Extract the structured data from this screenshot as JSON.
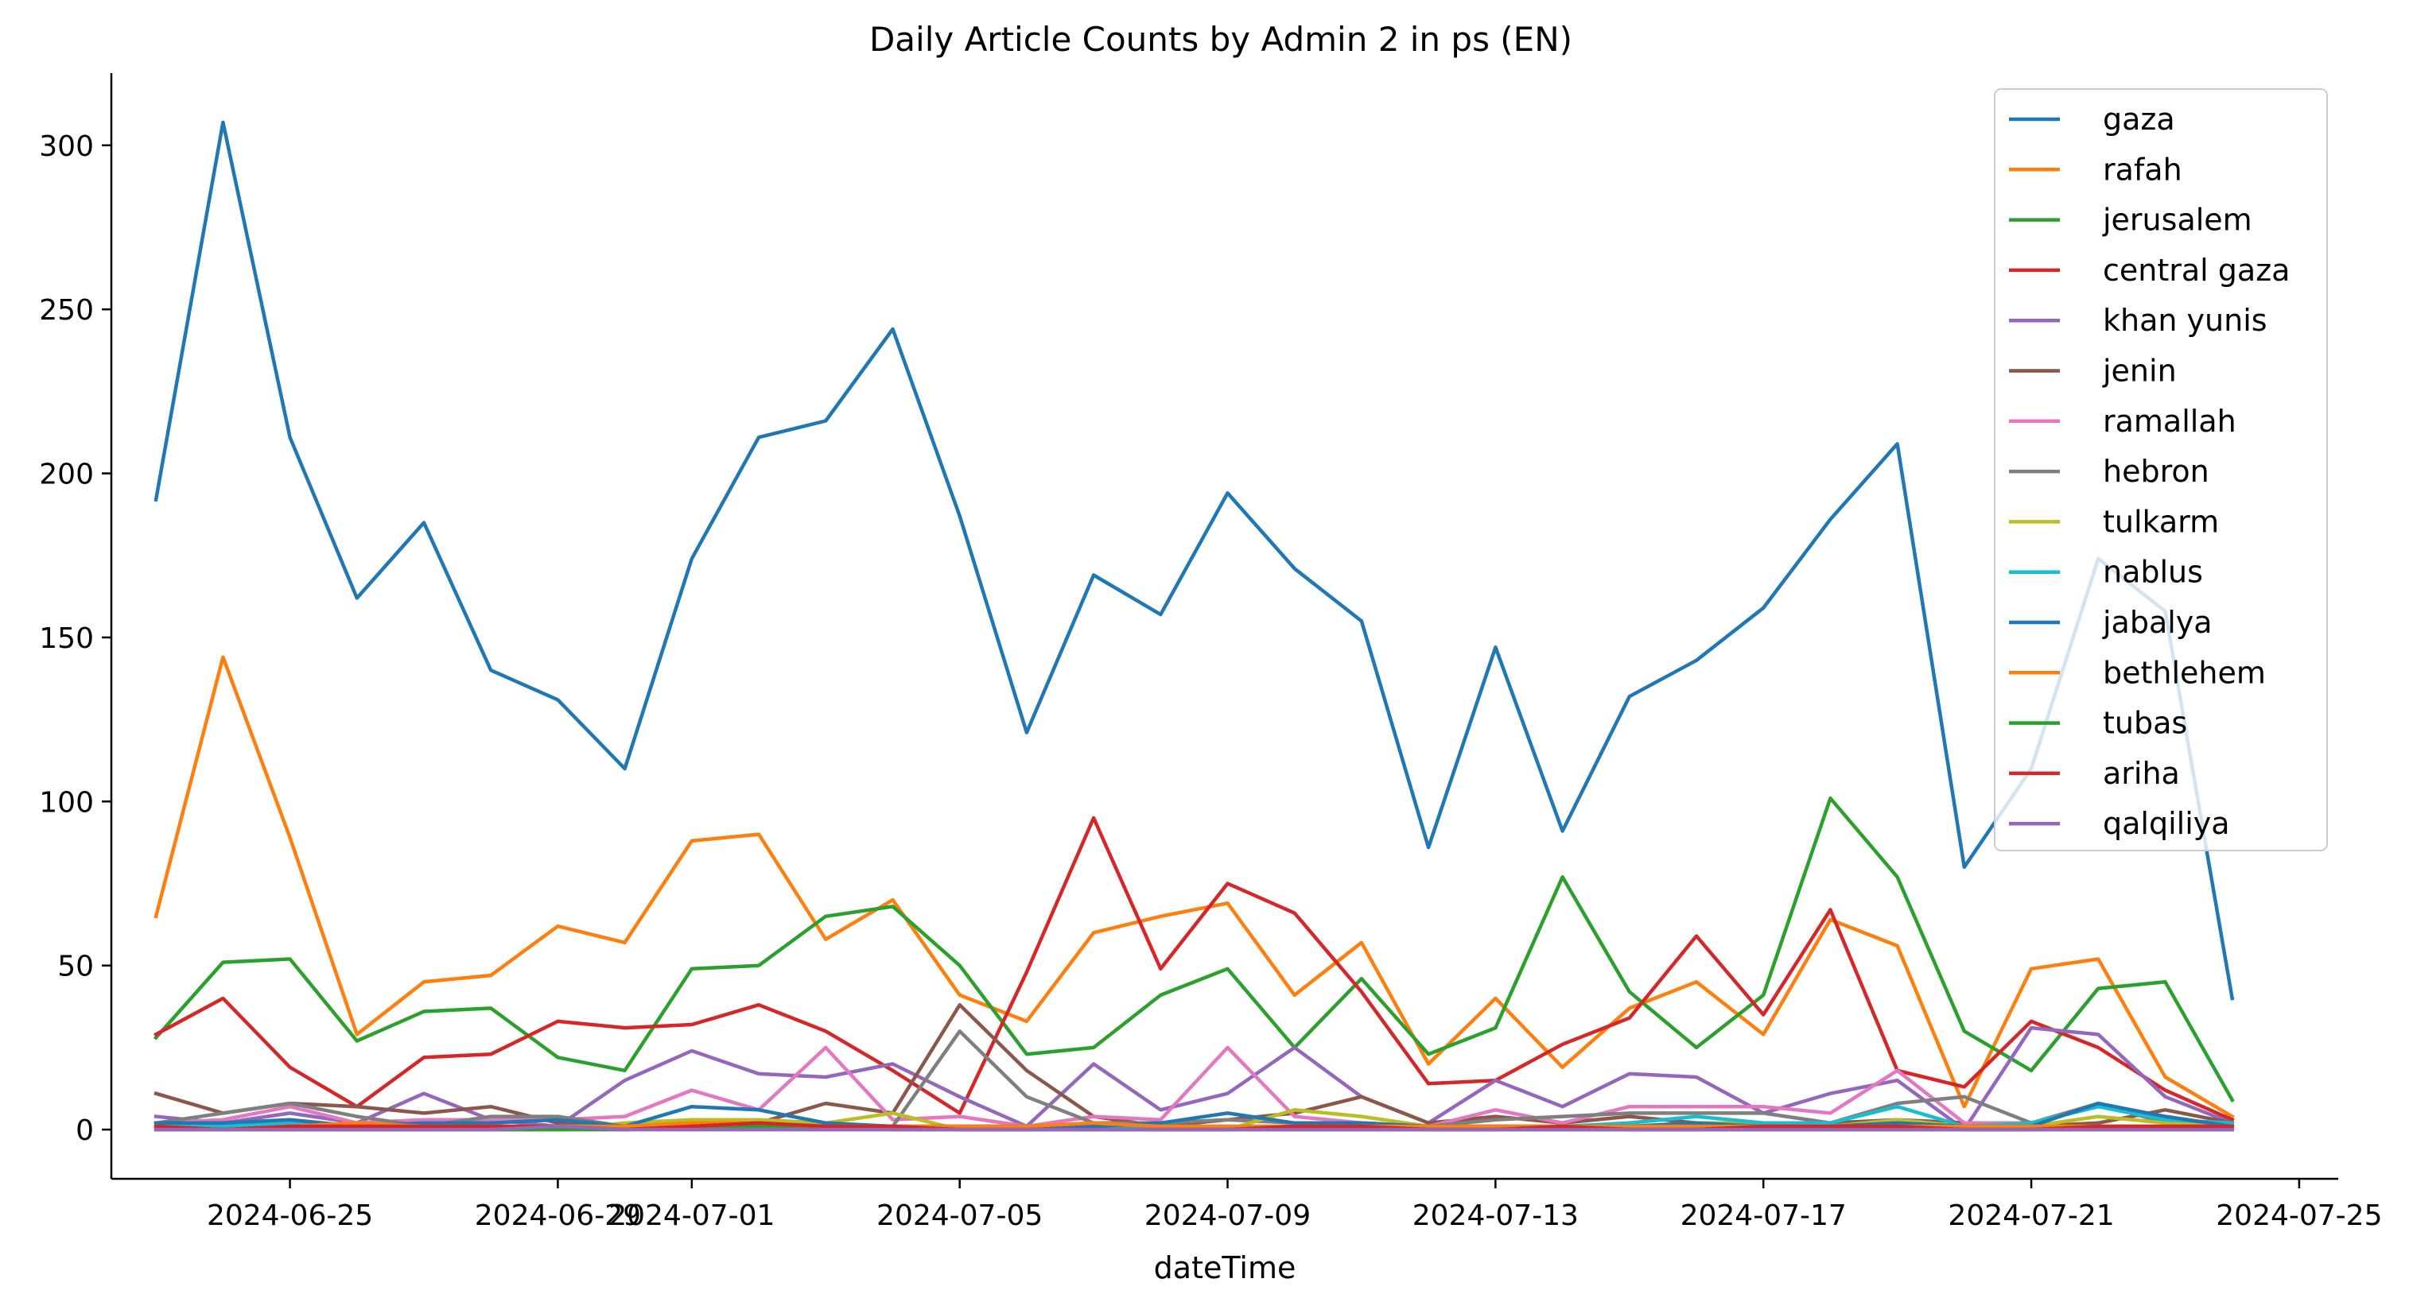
{
  "chart_data": {
    "type": "line",
    "title": "Daily Article Counts by Admin 2 in ps (EN)",
    "xlabel": "dateTime",
    "ylabel": "",
    "ylim": [
      -15,
      322
    ],
    "xlim": [
      "2024-06-22T08:00",
      "2024-07-25T14:00"
    ],
    "x_ticks": [
      "2024-06-25",
      "2024-06-29",
      "2024-07-01",
      "2024-07-05",
      "2024-07-09",
      "2024-07-13",
      "2024-07-17",
      "2024-07-21",
      "2024-07-25"
    ],
    "y_ticks": [
      0,
      50,
      100,
      150,
      200,
      250,
      300
    ],
    "legend_position": "top-right",
    "grid": false,
    "x": [
      "2024-06-23",
      "2024-06-24",
      "2024-06-25",
      "2024-06-26",
      "2024-06-27",
      "2024-06-28",
      "2024-06-29",
      "2024-06-30",
      "2024-07-01",
      "2024-07-02",
      "2024-07-03",
      "2024-07-04",
      "2024-07-05",
      "2024-07-06",
      "2024-07-07",
      "2024-07-08",
      "2024-07-09",
      "2024-07-10",
      "2024-07-11",
      "2024-07-12",
      "2024-07-13",
      "2024-07-14",
      "2024-07-15",
      "2024-07-16",
      "2024-07-17",
      "2024-07-18",
      "2024-07-19",
      "2024-07-20",
      "2024-07-21",
      "2024-07-22",
      "2024-07-23",
      "2024-07-24"
    ],
    "series": [
      {
        "name": "gaza",
        "color": "#1f77b4",
        "values": [
          192,
          307,
          211,
          162,
          185,
          140,
          131,
          110,
          174,
          211,
          216,
          244,
          187,
          121,
          169,
          157,
          194,
          171,
          155,
          86,
          147,
          91,
          132,
          143,
          159,
          186,
          209,
          80,
          110,
          174,
          158,
          40
        ]
      },
      {
        "name": "rafah",
        "color": "#ff7f0e",
        "values": [
          65,
          144,
          89,
          29,
          45,
          47,
          62,
          57,
          88,
          90,
          58,
          70,
          41,
          33,
          60,
          65,
          69,
          41,
          57,
          20,
          40,
          19,
          37,
          45,
          29,
          64,
          56,
          7,
          49,
          52,
          16,
          4
        ]
      },
      {
        "name": "jerusalem",
        "color": "#2ca02c",
        "values": [
          28,
          51,
          52,
          27,
          36,
          37,
          22,
          18,
          49,
          50,
          65,
          68,
          50,
          23,
          25,
          41,
          49,
          25,
          46,
          23,
          31,
          77,
          42,
          25,
          41,
          101,
          77,
          30,
          18,
          43,
          45,
          9
        ]
      },
      {
        "name": "central gaza",
        "color": "#d62728",
        "values": [
          29,
          40,
          19,
          7,
          22,
          23,
          33,
          31,
          32,
          38,
          30,
          18,
          5,
          48,
          95,
          49,
          75,
          66,
          42,
          14,
          15,
          26,
          34,
          59,
          35,
          67,
          18,
          13,
          33,
          25,
          12,
          3
        ]
      },
      {
        "name": "khan yunis",
        "color": "#9467bd",
        "values": [
          4,
          2,
          5,
          2,
          11,
          3,
          1,
          15,
          24,
          17,
          16,
          20,
          10,
          1,
          20,
          6,
          11,
          25,
          10,
          2,
          15,
          7,
          17,
          16,
          5,
          11,
          15,
          0,
          31,
          29,
          10,
          2
        ]
      },
      {
        "name": "jenin",
        "color": "#8c564b",
        "values": [
          11,
          5,
          8,
          7,
          5,
          7,
          2,
          1,
          1,
          2,
          8,
          5,
          38,
          18,
          4,
          1,
          3,
          5,
          10,
          2,
          4,
          2,
          4,
          2,
          2,
          2,
          3,
          2,
          1,
          2,
          6,
          2
        ]
      },
      {
        "name": "ramallah",
        "color": "#e377c2",
        "values": [
          2,
          3,
          7,
          2,
          3,
          3,
          3,
          4,
          12,
          6,
          25,
          3,
          4,
          1,
          4,
          3,
          25,
          4,
          2,
          1,
          6,
          2,
          7,
          7,
          7,
          5,
          18,
          2,
          2,
          7,
          4,
          1
        ]
      },
      {
        "name": "hebron",
        "color": "#7f7f7f",
        "values": [
          2,
          5,
          8,
          4,
          1,
          4,
          4,
          1,
          2,
          2,
          1,
          1,
          30,
          10,
          2,
          2,
          3,
          2,
          2,
          1,
          3,
          4,
          5,
          5,
          5,
          2,
          8,
          10,
          2,
          8,
          2,
          1
        ]
      },
      {
        "name": "tulkarm",
        "color": "#bcbd22",
        "values": [
          0,
          0,
          0,
          0,
          0,
          0,
          0,
          2,
          3,
          3,
          2,
          5,
          0,
          0,
          1,
          1,
          0,
          6,
          4,
          1,
          1,
          1,
          1,
          2,
          2,
          1,
          3,
          1,
          1,
          4,
          2,
          1
        ]
      },
      {
        "name": "nablus",
        "color": "#17becf",
        "values": [
          1,
          1,
          2,
          1,
          1,
          1,
          1,
          1,
          2,
          1,
          1,
          1,
          1,
          1,
          1,
          1,
          1,
          1,
          1,
          1,
          1,
          1,
          2,
          4,
          2,
          2,
          7,
          1,
          2,
          7,
          3,
          2
        ]
      },
      {
        "name": "jabalya",
        "color": "#1f77b4",
        "values": [
          2,
          2,
          3,
          1,
          2,
          2,
          3,
          1,
          7,
          6,
          2,
          1,
          1,
          1,
          1,
          2,
          5,
          2,
          2,
          1,
          1,
          1,
          1,
          2,
          1,
          1,
          2,
          1,
          1,
          8,
          4,
          1
        ]
      },
      {
        "name": "bethlehem",
        "color": "#ff7f0e",
        "values": [
          1,
          0,
          1,
          2,
          1,
          1,
          1,
          1,
          2,
          2,
          1,
          1,
          1,
          1,
          2,
          1,
          1,
          1,
          1,
          1,
          1,
          1,
          1,
          1,
          1,
          1,
          1,
          1,
          1,
          1,
          1,
          1
        ]
      },
      {
        "name": "tubas",
        "color": "#2ca02c",
        "values": [
          0,
          0,
          0,
          0,
          0,
          0,
          0,
          0,
          1,
          1,
          1,
          0,
          0,
          0,
          0,
          0,
          0,
          0,
          0,
          0,
          0,
          0,
          0,
          0,
          0,
          0,
          0,
          0,
          0,
          0,
          0,
          0
        ]
      },
      {
        "name": "ariha",
        "color": "#d62728",
        "values": [
          1,
          0,
          1,
          1,
          1,
          1,
          1,
          0,
          1,
          2,
          1,
          1,
          0,
          0,
          0,
          0,
          0,
          1,
          1,
          0,
          0,
          1,
          0,
          0,
          1,
          1,
          1,
          0,
          0,
          1,
          1,
          1
        ]
      },
      {
        "name": "qalqiliya",
        "color": "#9467bd",
        "values": [
          0,
          0,
          0,
          0,
          0,
          0,
          1,
          0,
          0,
          0,
          0,
          0,
          0,
          0,
          0,
          0,
          0,
          0,
          0,
          0,
          0,
          0,
          0,
          0,
          0,
          0,
          0,
          0,
          0,
          0,
          0,
          0
        ]
      }
    ]
  }
}
